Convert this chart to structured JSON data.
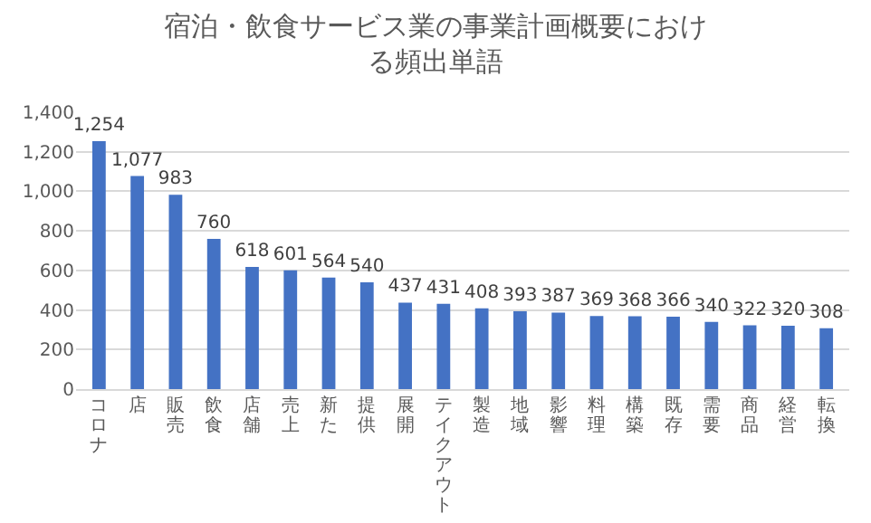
{
  "chart_data": {
    "type": "bar",
    "title": "宿泊・飲食サービス業の事業計画概要における頻出単語",
    "categories": [
      "コロナ",
      "店",
      "販売",
      "飲食",
      "店舗",
      "売上",
      "新た",
      "提供",
      "展開",
      "テイクアウト",
      "製造",
      "地域",
      "影響",
      "料理",
      "構築",
      "既存",
      "需要",
      "商品",
      "経営",
      "転換"
    ],
    "values": [
      1254,
      1077,
      983,
      760,
      618,
      601,
      564,
      540,
      437,
      431,
      408,
      393,
      387,
      369,
      368,
      366,
      340,
      322,
      320,
      308
    ],
    "value_labels": [
      "1,254",
      "1,077",
      "983",
      "760",
      "618",
      "601",
      "564",
      "540",
      "437",
      "431",
      "408",
      "393",
      "387",
      "369",
      "368",
      "366",
      "340",
      "322",
      "320",
      "308"
    ],
    "color": "#4472c4",
    "ylim": [
      0,
      1400
    ],
    "yticks": [
      0,
      200,
      400,
      600,
      800,
      {
        "value": 1000,
        "label": "1,000"
      },
      {
        "value": 1200,
        "label": "1,200"
      },
      {
        "value": 1400,
        "label": "1,400"
      }
    ],
    "grid": "y"
  }
}
